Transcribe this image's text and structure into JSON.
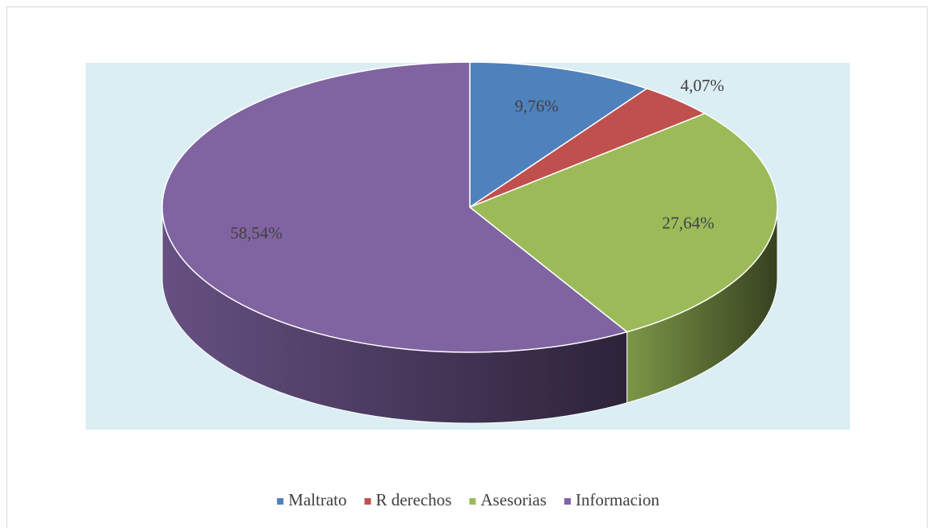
{
  "chart_data": {
    "type": "pie3d",
    "categories": [
      "Maltrato",
      "R derechos",
      "Asesorias",
      "Informacion"
    ],
    "values": [
      9.76,
      4.07,
      27.64,
      58.54
    ],
    "value_labels": [
      "9,76%",
      "4,07%",
      "27,64%",
      "58,54%"
    ],
    "colors": [
      "#4f81bd",
      "#c0504d",
      "#9bbb59",
      "#8064a2"
    ],
    "legend": "bottom"
  }
}
